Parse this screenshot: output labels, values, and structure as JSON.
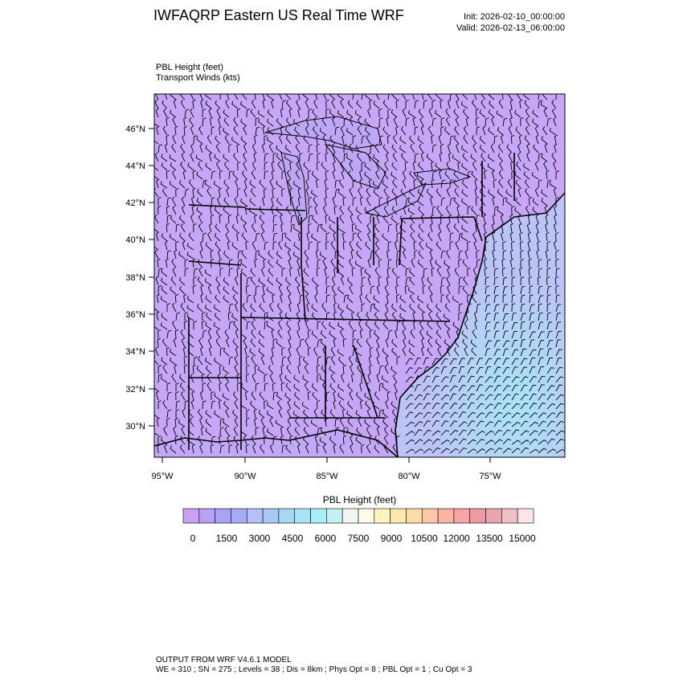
{
  "header": {
    "title": "IWFAQRP Eastern US Real Time WRF",
    "init": "Init: 2026-02-10_00:00:00",
    "valid": "Valid: 2026-02-13_06:00:00"
  },
  "subtitle": {
    "line1": "PBL Height   (feet)",
    "line2": "Transport Winds   (kts)"
  },
  "map": {
    "lat_labels": [
      "46°N",
      "44°N",
      "42°N",
      "40°N",
      "38°N",
      "36°N",
      "34°N",
      "32°N",
      "30°N"
    ],
    "lon_labels": [
      "95°W",
      "90°W",
      "85°W",
      "80°W",
      "75°W"
    ],
    "fill_colors": {
      "land": "#c8a6f7",
      "land_light": "#b9a3f6",
      "ocean": "#a9e4f8",
      "ocean_mid": "#c0c6f7"
    }
  },
  "colorbar": {
    "title": "PBL Height  (feet)",
    "labels": [
      "0",
      "1500",
      "3000",
      "4500",
      "6000",
      "7500",
      "9000",
      "10500",
      "12000",
      "13500",
      "15000"
    ],
    "colors": [
      "#c8a0f6",
      "#b8a0f6",
      "#a9a2f6",
      "#a8aaf6",
      "#b5c0f6",
      "#a8c8f6",
      "#a6d8f6",
      "#a8e4f6",
      "#a8eef6",
      "#c6f1f4",
      "#f2f6f0",
      "#fffae8",
      "#fdf4c0",
      "#fce8a8",
      "#fcdca6",
      "#fcc8a8",
      "#fbb4a0",
      "#f6a4a4",
      "#ee9aa2",
      "#e8a6b0",
      "#f0c0c8",
      "#fce4e8"
    ]
  },
  "footer": {
    "line1": "OUTPUT FROM WRF V4.6.1 MODEL",
    "line2": "WE = 310 ; SN = 275 ; Levels = 38 ; Dis = 8km ; Phys Opt = 8 ; PBL Opt = 1 ; Cu Opt = 3"
  }
}
